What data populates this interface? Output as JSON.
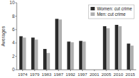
{
  "chart_data": {
    "type": "bar",
    "categories": [
      "1974",
      "1979",
      "1983",
      "1987",
      "1992",
      "1997",
      "2001",
      "2005",
      "2010",
      "2015"
    ],
    "series": [
      {
        "name": "Women: cut crime",
        "color": "#2b2b2b",
        "values": [
          5.0,
          4.8,
          3.1,
          7.6,
          4.2,
          4.3,
          0,
          6.5,
          6.7,
          3.9
        ]
      },
      {
        "name": "Men: cut crime",
        "color": "#b0b0b0",
        "values": [
          4.8,
          4.5,
          2.5,
          7.5,
          4.1,
          4.2,
          0,
          6.2,
          6.5,
          3.6
        ]
      }
    ],
    "ylabel": "Averages",
    "ylim": [
      0,
      10
    ],
    "yticks": [
      0,
      2,
      4,
      6,
      8,
      10
    ],
    "grid": false,
    "legend": "upper-right"
  }
}
